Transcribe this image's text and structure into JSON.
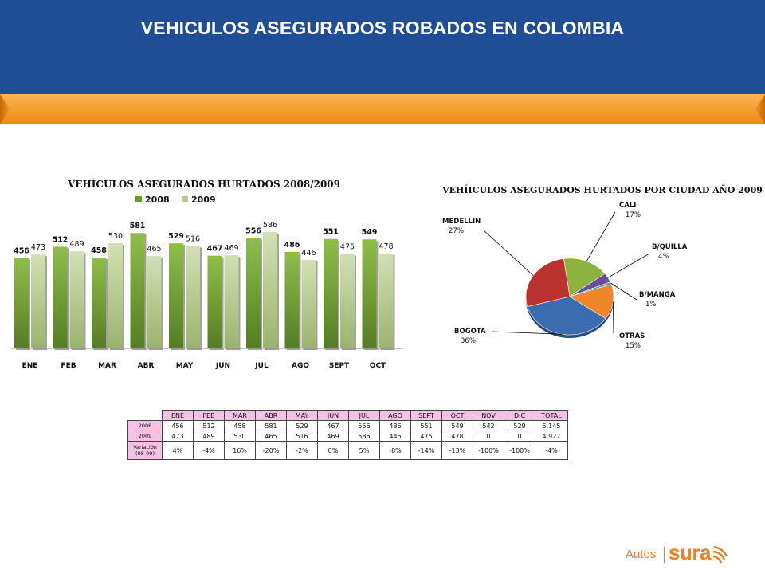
{
  "page": {
    "title": "VEHICULOS ASEGURADOS ROBADOS EN COLOMBIA"
  },
  "brand": {
    "autos": "Autos",
    "sura": "sura"
  },
  "colors": {
    "header": "#1f4e96",
    "band": "#f6a032",
    "s2008": "#6a9a2c",
    "s2009": "#b6cc8e",
    "logo": "#e6822a"
  },
  "chart_data": [
    {
      "type": "bar",
      "title": "VEHÍCULOS ASEGURADOS HURTADOS 2008/2009",
      "categories": [
        "ENE",
        "FEB",
        "MAR",
        "ABR",
        "MAY",
        "JUN",
        "JUL",
        "AGO",
        "SEPT",
        "OCT"
      ],
      "series": [
        {
          "name": "2008",
          "values": [
            456,
            512,
            458,
            581,
            529,
            467,
            556,
            486,
            551,
            549
          ]
        },
        {
          "name": "2009",
          "values": [
            473,
            489,
            530,
            465,
            516,
            469,
            586,
            446,
            475,
            478
          ]
        }
      ],
      "ylim": [
        0,
        650
      ],
      "legend": "top"
    },
    {
      "type": "pie",
      "title": "VEHÍICULOS ASEGURADOS HURTADOS POR CIUDAD AÑO 2009",
      "slices": [
        {
          "label": "CALI",
          "pct": "17%",
          "value": 17,
          "color": "#8db23e"
        },
        {
          "label": "B/QUILLA",
          "pct": "4%",
          "value": 4,
          "color": "#6b4c9a"
        },
        {
          "label": "B/MANGA",
          "pct": "1%",
          "value": 1,
          "color": "#37a0b8"
        },
        {
          "label": "OTRAS",
          "pct": "15%",
          "value": 15,
          "color": "#ef8629"
        },
        {
          "label": "BOGOTA",
          "pct": "36%",
          "value": 36,
          "color": "#3b6cb0"
        },
        {
          "label": "MEDELLIN",
          "pct": "27%",
          "value": 27,
          "color": "#b9322e"
        }
      ]
    }
  ],
  "table": {
    "headers": [
      "ENE",
      "FEB",
      "MAR",
      "ABR",
      "MAY",
      "JUN",
      "JUL",
      "AGO",
      "SEPT",
      "OCT",
      "NOV",
      "DIC",
      "TOTAL"
    ],
    "rows": [
      {
        "label": "2008",
        "values": [
          "456",
          "512",
          "458",
          "581",
          "529",
          "467",
          "556",
          "486",
          "551",
          "549",
          "542",
          "529",
          "5.145"
        ]
      },
      {
        "label": "2009",
        "values": [
          "473",
          "489",
          "530",
          "465",
          "516",
          "469",
          "586",
          "446",
          "475",
          "478",
          "0",
          "0",
          "4.927"
        ]
      }
    ],
    "variation": {
      "label_line1": "Variación",
      "label_line2": "(08-09)",
      "values": [
        "4%",
        "-4%",
        "16%",
        "-20%",
        "-2%",
        "0%",
        "5%",
        "-8%",
        "-14%",
        "-13%",
        "-100%",
        "-100%",
        "-4%"
      ]
    }
  }
}
